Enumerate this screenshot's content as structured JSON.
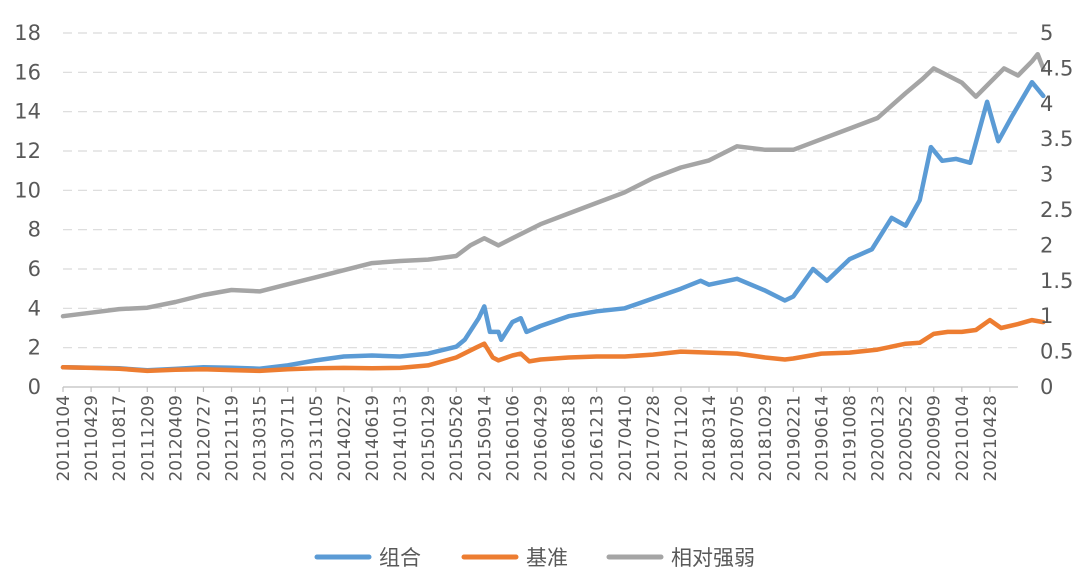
{
  "chart_data": {
    "type": "line",
    "title": "",
    "xlabel": "",
    "ylabel": "",
    "ylim": [
      0,
      18
    ],
    "y2lim": [
      0,
      5
    ],
    "y_ticks": [
      "0",
      "2",
      "4",
      "6",
      "8",
      "10",
      "12",
      "14",
      "16",
      "18"
    ],
    "y2_ticks": [
      "0",
      "0.5",
      "1",
      "1.5",
      "2",
      "2.5",
      "3",
      "3.5",
      "4",
      "4.5",
      "5"
    ],
    "x_tick_labels": [
      "20110104",
      "20110429",
      "20110817",
      "20111209",
      "20120409",
      "20120727",
      "20121119",
      "20130315",
      "20130711",
      "20131105",
      "20140227",
      "20140619",
      "20141013",
      "20150129",
      "20150526",
      "20150914",
      "20160106",
      "20160429",
      "20160818",
      "20161213",
      "20170410",
      "20170728",
      "20171120",
      "20180314",
      "20180705",
      "20181029",
      "20190221",
      "20190614",
      "20191008",
      "20200123",
      "20200522",
      "20200909",
      "20210104",
      "20210428"
    ],
    "x_extent": [
      0,
      34
    ],
    "grid": true,
    "legend_position": "bottom",
    "series": [
      {
        "name": "组合",
        "axis": "left",
        "color": "#5b9bd5",
        "points": [
          [
            0,
            1.0
          ],
          [
            1,
            0.98
          ],
          [
            2,
            0.95
          ],
          [
            3,
            0.85
          ],
          [
            4,
            0.92
          ],
          [
            5,
            1.0
          ],
          [
            6,
            0.98
          ],
          [
            7,
            0.93
          ],
          [
            8,
            1.1
          ],
          [
            9,
            1.35
          ],
          [
            10,
            1.55
          ],
          [
            11,
            1.6
          ],
          [
            12,
            1.55
          ],
          [
            13,
            1.7
          ],
          [
            14,
            2.05
          ],
          [
            14.3,
            2.4
          ],
          [
            14.8,
            3.5
          ],
          [
            15.0,
            4.1
          ],
          [
            15.2,
            2.8
          ],
          [
            15.5,
            2.8
          ],
          [
            15.6,
            2.4
          ],
          [
            16.0,
            3.3
          ],
          [
            16.3,
            3.5
          ],
          [
            16.5,
            2.8
          ],
          [
            17,
            3.1
          ],
          [
            18,
            3.6
          ],
          [
            19,
            3.85
          ],
          [
            20,
            4.0
          ],
          [
            21,
            4.5
          ],
          [
            22,
            5.0
          ],
          [
            22.7,
            5.4
          ],
          [
            23,
            5.2
          ],
          [
            24,
            5.5
          ],
          [
            25,
            4.9
          ],
          [
            25.7,
            4.4
          ],
          [
            26,
            4.6
          ],
          [
            26.7,
            6.0
          ],
          [
            27.2,
            5.4
          ],
          [
            28,
            6.5
          ],
          [
            28.8,
            7.0
          ],
          [
            29.5,
            8.6
          ],
          [
            30,
            8.2
          ],
          [
            30.5,
            9.5
          ],
          [
            30.9,
            12.2
          ],
          [
            31.3,
            11.5
          ],
          [
            31.8,
            11.6
          ],
          [
            32.3,
            11.4
          ],
          [
            32.9,
            14.5
          ],
          [
            33.3,
            12.5
          ],
          [
            33.8,
            13.8
          ],
          [
            34.5,
            15.5
          ],
          [
            34.9,
            14.8
          ]
        ]
      },
      {
        "name": "基准",
        "axis": "left",
        "color": "#ed7d31",
        "points": [
          [
            0,
            1.0
          ],
          [
            1,
            0.97
          ],
          [
            2,
            0.93
          ],
          [
            3,
            0.82
          ],
          [
            4,
            0.88
          ],
          [
            5,
            0.9
          ],
          [
            6,
            0.86
          ],
          [
            7,
            0.82
          ],
          [
            8,
            0.9
          ],
          [
            9,
            0.95
          ],
          [
            10,
            0.97
          ],
          [
            11,
            0.95
          ],
          [
            12,
            0.97
          ],
          [
            13,
            1.1
          ],
          [
            14,
            1.5
          ],
          [
            14.7,
            2.0
          ],
          [
            15.0,
            2.2
          ],
          [
            15.3,
            1.5
          ],
          [
            15.5,
            1.35
          ],
          [
            16,
            1.6
          ],
          [
            16.3,
            1.7
          ],
          [
            16.6,
            1.3
          ],
          [
            17,
            1.4
          ],
          [
            18,
            1.5
          ],
          [
            19,
            1.55
          ],
          [
            20,
            1.55
          ],
          [
            21,
            1.65
          ],
          [
            22,
            1.8
          ],
          [
            23,
            1.75
          ],
          [
            24,
            1.7
          ],
          [
            25,
            1.5
          ],
          [
            25.7,
            1.4
          ],
          [
            26,
            1.45
          ],
          [
            27,
            1.7
          ],
          [
            28,
            1.75
          ],
          [
            29,
            1.9
          ],
          [
            30,
            2.2
          ],
          [
            30.5,
            2.25
          ],
          [
            31,
            2.7
          ],
          [
            31.5,
            2.8
          ],
          [
            32,
            2.8
          ],
          [
            32.5,
            2.9
          ],
          [
            33,
            3.4
          ],
          [
            33.4,
            3.0
          ],
          [
            34,
            3.2
          ],
          [
            34.5,
            3.4
          ],
          [
            34.9,
            3.3
          ]
        ]
      },
      {
        "name": "相对强弱",
        "axis": "right",
        "color": "#a5a5a5",
        "points": [
          [
            0,
            1.0
          ],
          [
            1,
            1.05
          ],
          [
            2,
            1.1
          ],
          [
            3,
            1.12
          ],
          [
            4,
            1.2
          ],
          [
            5,
            1.3
          ],
          [
            6,
            1.37
          ],
          [
            7,
            1.35
          ],
          [
            8,
            1.45
          ],
          [
            9,
            1.55
          ],
          [
            10,
            1.65
          ],
          [
            11,
            1.75
          ],
          [
            12,
            1.78
          ],
          [
            13,
            1.8
          ],
          [
            14,
            1.85
          ],
          [
            14.5,
            2.0
          ],
          [
            15,
            2.1
          ],
          [
            15.5,
            2.0
          ],
          [
            16,
            2.1
          ],
          [
            17,
            2.3
          ],
          [
            18,
            2.45
          ],
          [
            19,
            2.6
          ],
          [
            20,
            2.75
          ],
          [
            21,
            2.95
          ],
          [
            22,
            3.1
          ],
          [
            23,
            3.2
          ],
          [
            24,
            3.4
          ],
          [
            25,
            3.35
          ],
          [
            26,
            3.35
          ],
          [
            27,
            3.5
          ],
          [
            28,
            3.65
          ],
          [
            29,
            3.8
          ],
          [
            30,
            4.15
          ],
          [
            30.6,
            4.35
          ],
          [
            31,
            4.5
          ],
          [
            31.5,
            4.4
          ],
          [
            32,
            4.3
          ],
          [
            32.5,
            4.1
          ],
          [
            33,
            4.3
          ],
          [
            33.5,
            4.5
          ],
          [
            34,
            4.4
          ],
          [
            34.5,
            4.6
          ],
          [
            34.7,
            4.7
          ],
          [
            34.9,
            4.5
          ]
        ]
      }
    ]
  }
}
